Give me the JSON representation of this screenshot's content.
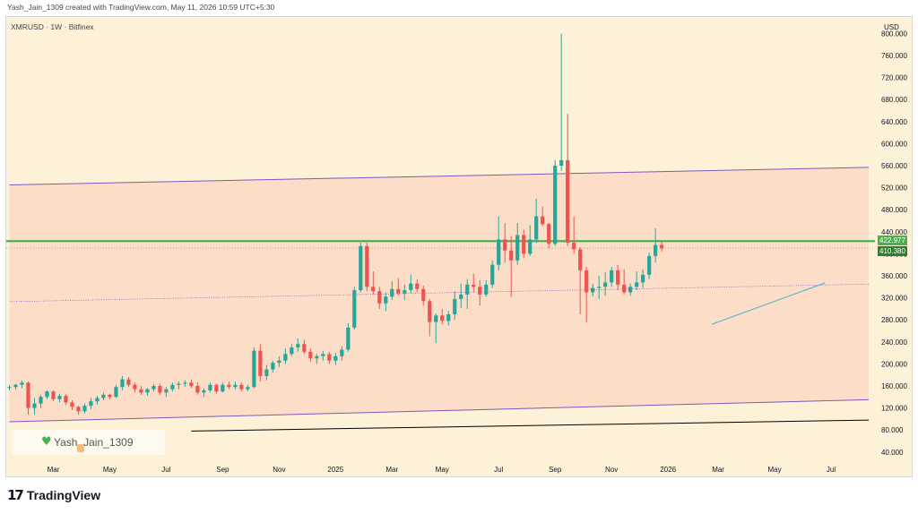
{
  "header": {
    "attribution": "Yash_Jain_1309 created with TradingView.com, May 11, 2026 10:59 UTC+5:30"
  },
  "footer": {
    "logo_text": "TradingView"
  },
  "watermark": {
    "text": "Yash_Jain_1309"
  },
  "chart_data": {
    "type": "candlestick",
    "symbol_title": "XMRUSD · 1W · Bitfinex",
    "currency_label": "USD",
    "y_ticks": [
      40,
      80,
      120,
      160,
      200,
      240,
      280,
      320,
      360,
      400,
      440,
      480,
      520,
      560,
      600,
      640,
      680,
      720,
      760,
      800
    ],
    "y_tick_labels": [
      "40.000",
      "80.000",
      "120.000",
      "160.000",
      "200.000",
      "240.000",
      "280.000",
      "320.000",
      "360.000",
      "400.000",
      "440.000",
      "480.000",
      "520.000",
      "560.000",
      "600.000",
      "640.000",
      "680.000",
      "720.000",
      "760.000",
      "800.000"
    ],
    "ylim": [
      25,
      830
    ],
    "x_labels": [
      "Mar",
      "May",
      "Jul",
      "Sep",
      "Nov",
      "2025",
      "Mar",
      "May",
      "Jul",
      "Sep",
      "Nov",
      "2026",
      "Mar",
      "May",
      "Jul"
    ],
    "x_label_weeks": [
      7,
      16,
      25,
      34,
      43,
      52,
      61,
      69,
      78,
      87,
      96,
      105,
      113,
      122,
      131
    ],
    "xlim": [
      -0.5,
      138
    ],
    "last_price_label": "422.977",
    "current_price_label": "410.380",
    "colors": {
      "up": "#26a69a",
      "down": "#ef5350",
      "background": "#fdf1d8",
      "channel_fill": "#fcdcc6",
      "channel_line": "#7e57c2",
      "support_line": "#4caf50",
      "trendline": "#5fb8c8",
      "last_price_tag": "#4caf50",
      "current_price_tag": "#2e7d32"
    },
    "levels": {
      "horizontal_resistance": 422.977,
      "current_price": 410.38
    },
    "channel_upper": [
      [
        0,
        525
      ],
      [
        137,
        557
      ]
    ],
    "channel_lower": [
      [
        0,
        95
      ],
      [
        137,
        135
      ]
    ],
    "channel_mid": [
      [
        0,
        313
      ],
      [
        137,
        345
      ]
    ],
    "black_line": [
      [
        29,
        78
      ],
      [
        137,
        98
      ]
    ],
    "trendline": [
      [
        112,
        272
      ],
      [
        130,
        347
      ]
    ],
    "candles": [
      [
        158,
        162,
        152,
        158
      ],
      [
        158,
        164,
        154,
        162
      ],
      [
        162,
        170,
        156,
        166
      ],
      [
        166,
        168,
        108,
        120
      ],
      [
        120,
        138,
        108,
        128
      ],
      [
        128,
        144,
        120,
        140
      ],
      [
        140,
        152,
        136,
        150
      ],
      [
        150,
        152,
        132,
        136
      ],
      [
        136,
        146,
        130,
        142
      ],
      [
        142,
        145,
        126,
        130
      ],
      [
        130,
        134,
        116,
        122
      ],
      [
        122,
        124,
        108,
        114
      ],
      [
        114,
        128,
        110,
        124
      ],
      [
        124,
        138,
        118,
        132
      ],
      [
        132,
        142,
        126,
        138
      ],
      [
        138,
        148,
        134,
        144
      ],
      [
        144,
        146,
        136,
        140
      ],
      [
        140,
        162,
        138,
        158
      ],
      [
        158,
        178,
        152,
        172
      ],
      [
        172,
        176,
        158,
        162
      ],
      [
        162,
        166,
        148,
        154
      ],
      [
        154,
        160,
        144,
        148
      ],
      [
        148,
        156,
        142,
        154
      ],
      [
        154,
        164,
        150,
        160
      ],
      [
        160,
        164,
        144,
        148
      ],
      [
        148,
        158,
        140,
        154
      ],
      [
        154,
        166,
        150,
        162
      ],
      [
        162,
        168,
        154,
        164
      ],
      [
        164,
        170,
        158,
        166
      ],
      [
        166,
        172,
        156,
        160
      ],
      [
        160,
        166,
        144,
        148
      ],
      [
        148,
        156,
        140,
        152
      ],
      [
        152,
        166,
        148,
        162
      ],
      [
        162,
        164,
        146,
        150
      ],
      [
        150,
        166,
        148,
        162
      ],
      [
        162,
        168,
        154,
        158
      ],
      [
        158,
        168,
        154,
        162
      ],
      [
        162,
        166,
        150,
        154
      ],
      [
        154,
        162,
        150,
        158
      ],
      [
        158,
        230,
        156,
        224
      ],
      [
        224,
        236,
        168,
        178
      ],
      [
        178,
        198,
        170,
        190
      ],
      [
        190,
        206,
        184,
        202
      ],
      [
        202,
        214,
        194,
        206
      ],
      [
        206,
        228,
        200,
        218
      ],
      [
        218,
        236,
        214,
        230
      ],
      [
        230,
        246,
        222,
        236
      ],
      [
        236,
        244,
        218,
        222
      ],
      [
        222,
        228,
        204,
        210
      ],
      [
        210,
        218,
        200,
        214
      ],
      [
        214,
        224,
        206,
        218
      ],
      [
        218,
        222,
        200,
        206
      ],
      [
        206,
        220,
        198,
        214
      ],
      [
        214,
        232,
        206,
        226
      ],
      [
        226,
        274,
        222,
        266
      ],
      [
        266,
        340,
        262,
        334
      ],
      [
        334,
        420,
        330,
        414
      ],
      [
        414,
        420,
        332,
        340
      ],
      [
        340,
        368,
        326,
        332
      ],
      [
        332,
        340,
        300,
        310
      ],
      [
        310,
        330,
        296,
        322
      ],
      [
        322,
        350,
        316,
        336
      ],
      [
        336,
        356,
        324,
        328
      ],
      [
        328,
        344,
        316,
        334
      ],
      [
        334,
        362,
        328,
        346
      ],
      [
        346,
        354,
        330,
        336
      ],
      [
        336,
        342,
        306,
        314
      ],
      [
        314,
        318,
        250,
        276
      ],
      [
        276,
        292,
        238,
        288
      ],
      [
        288,
        300,
        272,
        278
      ],
      [
        278,
        296,
        270,
        290
      ],
      [
        290,
        332,
        280,
        318
      ],
      [
        318,
        346,
        302,
        326
      ],
      [
        326,
        354,
        300,
        344
      ],
      [
        344,
        364,
        330,
        340
      ],
      [
        340,
        352,
        306,
        326
      ],
      [
        326,
        352,
        322,
        344
      ],
      [
        344,
        388,
        338,
        380
      ],
      [
        380,
        468,
        370,
        426
      ],
      [
        426,
        456,
        384,
        406
      ],
      [
        406,
        432,
        322,
        388
      ],
      [
        388,
        456,
        380,
        434
      ],
      [
        434,
        444,
        392,
        400
      ],
      [
        400,
        452,
        396,
        426
      ],
      [
        426,
        500,
        420,
        468
      ],
      [
        468,
        486,
        450,
        454
      ],
      [
        454,
        456,
        410,
        418
      ],
      [
        418,
        570,
        414,
        560
      ],
      [
        560,
        800,
        550,
        570
      ],
      [
        570,
        654,
        414,
        420
      ],
      [
        420,
        468,
        400,
        408
      ],
      [
        408,
        412,
        290,
        370
      ],
      [
        370,
        376,
        276,
        330
      ],
      [
        330,
        346,
        322,
        338
      ],
      [
        338,
        360,
        318,
        340
      ],
      [
        340,
        366,
        324,
        348
      ],
      [
        348,
        376,
        340,
        370
      ],
      [
        370,
        380,
        334,
        344
      ],
      [
        344,
        372,
        326,
        330
      ],
      [
        330,
        346,
        324,
        340
      ],
      [
        340,
        368,
        334,
        348
      ],
      [
        348,
        372,
        338,
        362
      ],
      [
        362,
        402,
        354,
        396
      ],
      [
        396,
        446,
        384,
        416
      ],
      [
        416,
        422,
        404,
        410
      ]
    ]
  }
}
